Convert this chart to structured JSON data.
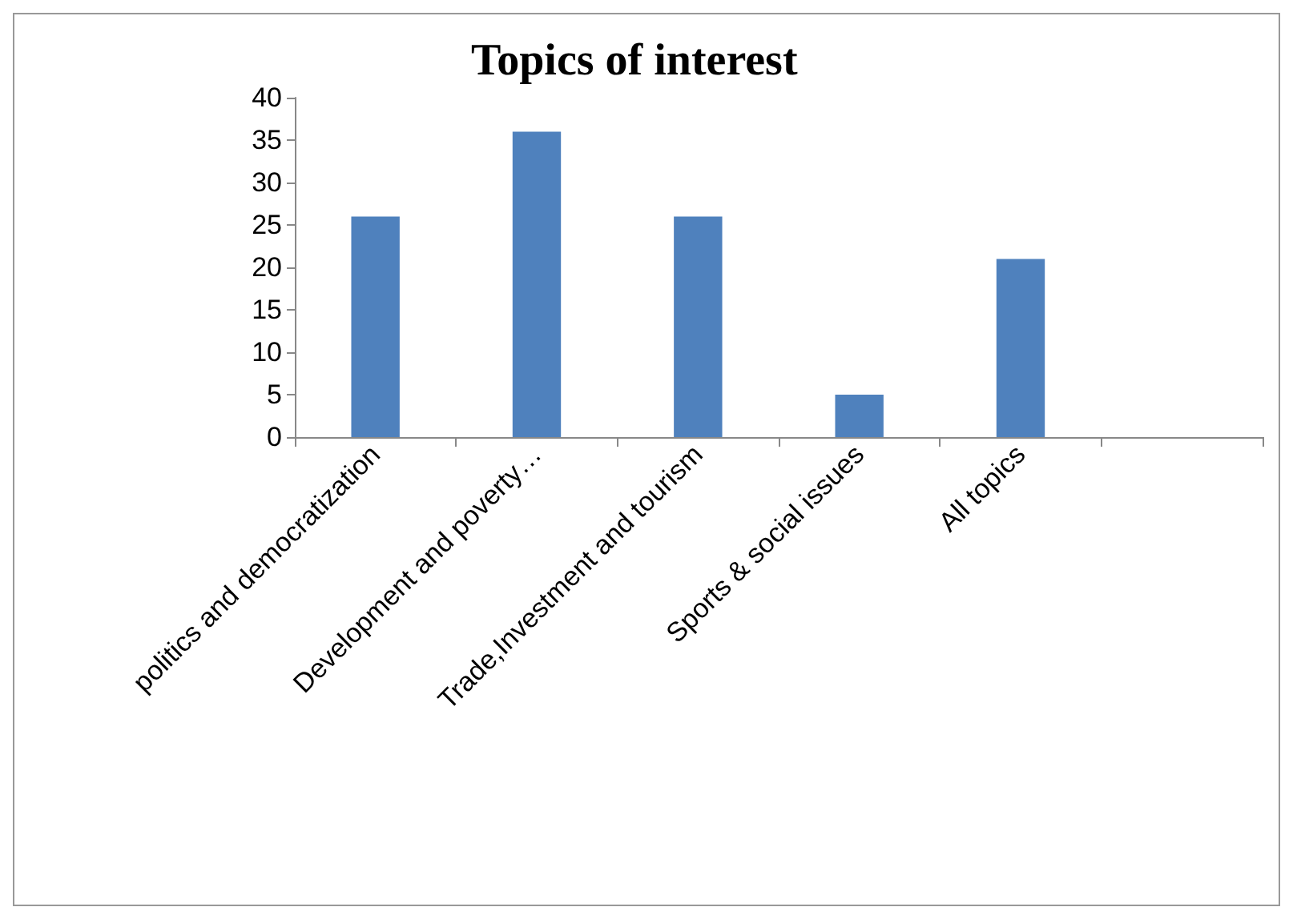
{
  "chart_data": {
    "type": "bar",
    "title": "Topics of interest",
    "categories": [
      "politics and democratization",
      "Development and poverty…",
      "Trade,Investment and tourism",
      "Sports & social issues",
      "All topics",
      null
    ],
    "values": [
      26,
      36,
      26,
      5,
      21,
      null
    ],
    "color": "#4f81bd",
    "ylim": [
      0,
      40
    ],
    "yticks": [
      0,
      5,
      10,
      15,
      20,
      25,
      30,
      35,
      40
    ],
    "grid": false
  }
}
